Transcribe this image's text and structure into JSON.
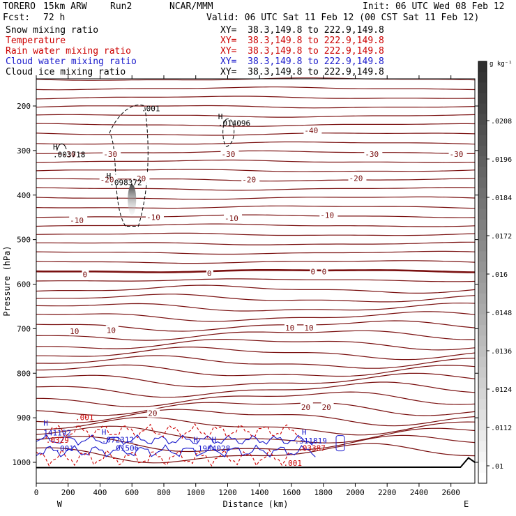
{
  "header": {
    "model": "TORERO",
    "grid": "15km ARW",
    "run": "Run2",
    "org": "NCAR/MMM",
    "init": "Init: 06 UTC Wed 08 Feb 12",
    "fcst_label": "Fcst:",
    "fcst_value": "72 h",
    "valid": "Valid: 06 UTC Sat 11 Feb 12 (00 CST Sat 11 Feb 12)"
  },
  "fields": [
    {
      "name": "Snow mixing ratio",
      "color": "#000000",
      "xy": "XY=  38.3,149.8 to 222.9,149.8"
    },
    {
      "name": "Temperature",
      "color": "#cc0000",
      "xy": "XY=  38.3,149.8 to 222.9,149.8"
    },
    {
      "name": "Rain water mixing ratio",
      "color": "#cc0000",
      "xy": "XY=  38.3,149.8 to 222.9,149.8"
    },
    {
      "name": "Cloud water mixing ratio",
      "color": "#1a1acc",
      "xy": "XY=  38.3,149.8 to 222.9,149.8"
    },
    {
      "name": "Cloud ice mixing ratio",
      "color": "#000000",
      "xy": "XY=  38.3,149.8 to 222.9,149.8"
    }
  ],
  "colors": {
    "temperature": "#7a1010",
    "temp_zero": "#7a1010",
    "rain": "#cc0000",
    "cloud_water": "#1a1acc",
    "ice": "#000000",
    "axis": "#000000"
  },
  "chart_data": {
    "type": "contour",
    "xlabel": "Distance (km)",
    "ylabel": "Pressure (hPa)",
    "xlim": [
      0,
      2750
    ],
    "ylim": [
      1010,
      135
    ],
    "x_ticks": [
      0,
      200,
      400,
      600,
      800,
      1000,
      1200,
      1400,
      1600,
      1800,
      2000,
      2200,
      2400,
      2600
    ],
    "y_ticks": [
      200,
      300,
      400,
      500,
      600,
      700,
      800,
      900,
      1000
    ],
    "x_end_labels": {
      "left": "W",
      "right": "E"
    },
    "colorbar": {
      "unit": "g kg⁻¹",
      "ticks": [
        ".0208",
        ".0196",
        ".0184",
        ".0172",
        ".016",
        ".0148",
        ".0136",
        ".0124",
        ".0112",
        ".01"
      ],
      "color_top": "#303030",
      "color_bottom": "#ffffff"
    },
    "temperature_contour_labels": [
      {
        "x": 1720,
        "p": 255,
        "text": "-40"
      },
      {
        "x": 200,
        "p": 308,
        "text": "-30"
      },
      {
        "x": 460,
        "p": 308,
        "text": "-30"
      },
      {
        "x": 1200,
        "p": 308,
        "text": "-30"
      },
      {
        "x": 2100,
        "p": 308,
        "text": "-30"
      },
      {
        "x": 2630,
        "p": 308,
        "text": "-30"
      },
      {
        "x": 440,
        "p": 365,
        "text": "-20"
      },
      {
        "x": 640,
        "p": 363,
        "text": "-20"
      },
      {
        "x": 1330,
        "p": 365,
        "text": "-20"
      },
      {
        "x": 2000,
        "p": 362,
        "text": "-20"
      },
      {
        "x": 250,
        "p": 457,
        "text": "-10"
      },
      {
        "x": 730,
        "p": 450,
        "text": "-10"
      },
      {
        "x": 1220,
        "p": 452,
        "text": "-10"
      },
      {
        "x": 1820,
        "p": 445,
        "text": "-10"
      },
      {
        "x": 330,
        "p": 578,
        "text": "0"
      },
      {
        "x": 1110,
        "p": 576,
        "text": "0"
      },
      {
        "x": 1760,
        "p": 572,
        "text": "0"
      },
      {
        "x": 1830,
        "p": 572,
        "text": "0"
      },
      {
        "x": 250,
        "p": 706,
        "text": "10"
      },
      {
        "x": 480,
        "p": 703,
        "text": "10"
      },
      {
        "x": 1600,
        "p": 698,
        "text": "10"
      },
      {
        "x": 1720,
        "p": 698,
        "text": "10"
      },
      {
        "x": 740,
        "p": 890,
        "text": "20"
      },
      {
        "x": 1700,
        "p": 876,
        "text": "20"
      },
      {
        "x": 1830,
        "p": 876,
        "text": "20"
      }
    ],
    "point_labels": [
      {
        "x": 660,
        "p": 212,
        "text": ".001",
        "color": "ice"
      },
      {
        "x": 1140,
        "p": 230,
        "text": "H",
        "color": "ice"
      },
      {
        "x": 1140,
        "p": 245,
        "text": ".014096",
        "color": "ice"
      },
      {
        "x": 105,
        "p": 298,
        "text": "H",
        "color": "ice"
      },
      {
        "x": 105,
        "p": 315,
        "text": ".003718",
        "color": "ice"
      },
      {
        "x": 440,
        "p": 363,
        "text": "H",
        "color": "ice"
      },
      {
        "x": 460,
        "p": 378,
        "text": ".098372",
        "color": "ice"
      },
      {
        "x": 45,
        "p": 918,
        "text": "H",
        "color": "cloud_water"
      },
      {
        "x": 45,
        "p": 940,
        "text": "141192",
        "color": "cloud_water"
      },
      {
        "x": 60,
        "p": 956,
        "text": ".0329",
        "color": "rain"
      },
      {
        "x": 120,
        "p": 975,
        "text": ".001",
        "color": "cloud_water"
      },
      {
        "x": 245,
        "p": 905,
        "text": ".001",
        "color": "rain"
      },
      {
        "x": 410,
        "p": 938,
        "text": "H",
        "color": "cloud_water"
      },
      {
        "x": 410,
        "p": 955,
        "text": ".072312",
        "color": "cloud_water"
      },
      {
        "x": 470,
        "p": 974,
        "text": ".01506",
        "color": "cloud_water"
      },
      {
        "x": 985,
        "p": 955,
        "text": "H",
        "color": "cloud_water"
      },
      {
        "x": 985,
        "p": 975,
        "text": ".1904028",
        "color": "cloud_water"
      },
      {
        "x": 1100,
        "p": 955,
        "text": "H",
        "color": "cloud_water"
      },
      {
        "x": 1665,
        "p": 938,
        "text": "H",
        "color": "cloud_water"
      },
      {
        "x": 1620,
        "p": 958,
        "text": ".311819",
        "color": "cloud_water"
      },
      {
        "x": 1640,
        "p": 974,
        "text": ".03387",
        "color": "rain"
      },
      {
        "x": 1550,
        "p": 1008,
        "text": ".001",
        "color": "rain"
      }
    ]
  }
}
